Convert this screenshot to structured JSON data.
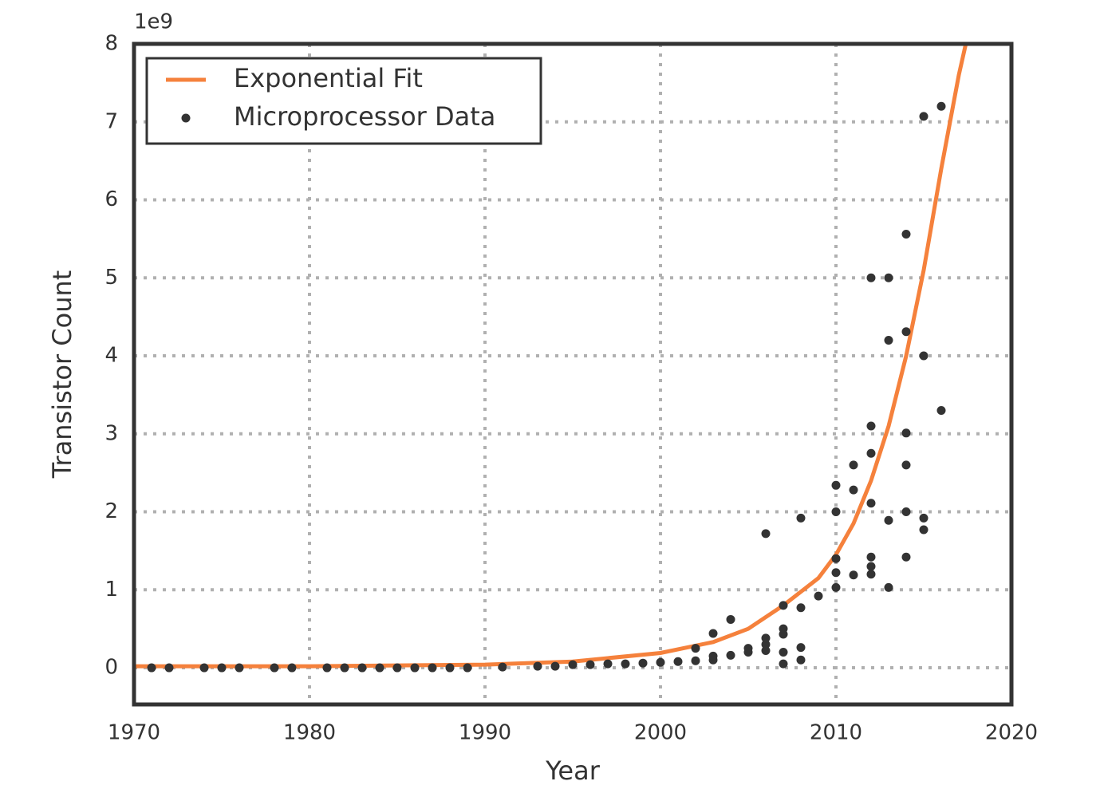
{
  "chart_data": {
    "type": "scatter",
    "x_label": "Year",
    "y_label": "Transistor Count",
    "y_offset_label": "1e9",
    "xlim": [
      1970,
      2020
    ],
    "xticks": [
      1970,
      1980,
      1990,
      2000,
      2010,
      2020
    ],
    "ylim": [
      -0.47,
      8
    ],
    "yticks": [
      0,
      1,
      2,
      3,
      4,
      5,
      6,
      7,
      8
    ],
    "grid": true,
    "legend": "upper left",
    "series": [
      {
        "name": "Exponential Fit",
        "type": "line",
        "color": "#f5813c",
        "x": [
          1970,
          1980,
          1990,
          1995,
          2000,
          2003,
          2005,
          2007,
          2009,
          2010,
          2011,
          2012,
          2013,
          2014,
          2015,
          2016,
          2017,
          2017.4
        ],
        "values": [
          0.02,
          0.02,
          0.04,
          0.08,
          0.19,
          0.33,
          0.5,
          0.8,
          1.15,
          1.45,
          1.85,
          2.4,
          3.1,
          4.0,
          5.1,
          6.4,
          7.6,
          8
        ]
      },
      {
        "name": "Microprocessor Data",
        "type": "scatter",
        "color": "#333333",
        "x": [
          1971,
          1972,
          1974,
          1975,
          1976,
          1978,
          1979,
          1981,
          1982,
          1983,
          1984,
          1985,
          1986,
          1987,
          1988,
          1989,
          1991,
          1993,
          1994,
          1995,
          1996,
          1997,
          1998,
          1999,
          2000,
          2001,
          2002,
          2002,
          2003,
          2003,
          2003,
          2004,
          2004,
          2005,
          2005,
          2006,
          2006,
          2006,
          2006,
          2007,
          2007,
          2007,
          2007,
          2007,
          2008,
          2008,
          2008,
          2008,
          2009,
          2010,
          2010,
          2010,
          2010,
          2010,
          2011,
          2011,
          2011,
          2012,
          2012,
          2012,
          2012,
          2012,
          2012,
          2012,
          2013,
          2013,
          2013,
          2013,
          2014,
          2014,
          2014,
          2014,
          2014,
          2014,
          2015,
          2015,
          2015,
          2015,
          2016,
          2016
        ],
        "values": [
          0,
          0,
          0,
          0,
          0,
          0,
          0,
          0,
          0,
          0,
          0,
          0,
          0,
          0,
          0,
          0,
          0.01,
          0.02,
          0.02,
          0.04,
          0.04,
          0.05,
          0.05,
          0.06,
          0.07,
          0.08,
          0.09,
          0.25,
          0.1,
          0.15,
          0.44,
          0.16,
          0.62,
          0.2,
          0.25,
          0.22,
          0.3,
          0.38,
          1.72,
          0.05,
          0.2,
          0.43,
          0.5,
          0.8,
          0.1,
          0.26,
          0.77,
          1.92,
          0.92,
          1.03,
          1.22,
          1.4,
          2.0,
          2.34,
          1.19,
          2.28,
          2.6,
          1.2,
          1.3,
          1.42,
          2.11,
          2.75,
          3.1,
          5.0,
          1.03,
          1.89,
          4.2,
          5.0,
          1.42,
          2.0,
          2.6,
          3.01,
          4.31,
          5.56,
          1.77,
          1.92,
          4.0,
          7.07,
          3.3,
          7.2
        ]
      }
    ]
  }
}
